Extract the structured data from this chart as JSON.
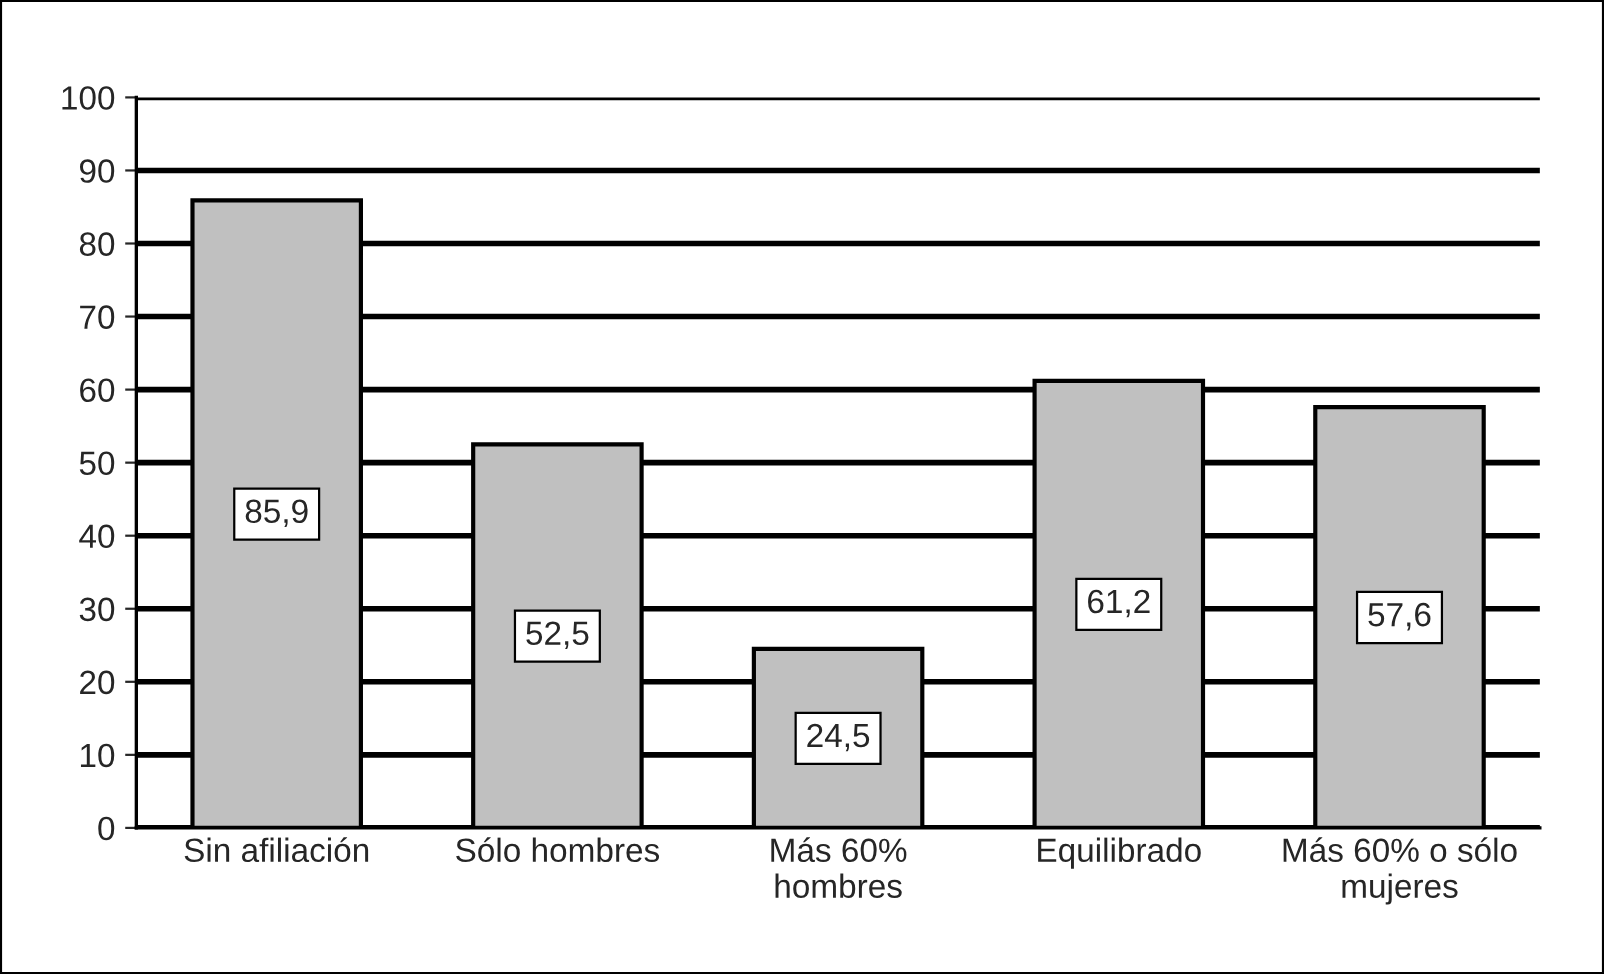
{
  "chart_data": {
    "type": "bar",
    "categories": [
      "Sin afiliación",
      "Sólo hombres",
      "Más 60%\nhombres",
      "Equilibrado",
      "Más 60% o sólo\nmujeres"
    ],
    "values": [
      85.9,
      52.5,
      24.5,
      61.2,
      57.6
    ],
    "value_labels": [
      "85,9",
      "52,5",
      "24,5",
      "61,2",
      "57,6"
    ],
    "color": "#c0c0c0",
    "ylim": [
      0,
      100
    ],
    "yticks": [
      0,
      10,
      20,
      30,
      40,
      50,
      60,
      70,
      80,
      90,
      100
    ],
    "grid": "y"
  }
}
